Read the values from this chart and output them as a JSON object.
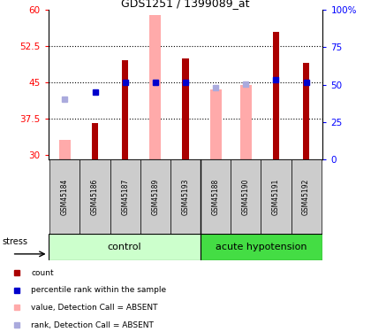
{
  "title": "GDS1251 / 1399089_at",
  "samples": [
    "GSM45184",
    "GSM45186",
    "GSM45187",
    "GSM45189",
    "GSM45193",
    "GSM45188",
    "GSM45190",
    "GSM45191",
    "GSM45192"
  ],
  "red_bar_values": [
    null,
    36.5,
    49.5,
    null,
    50.0,
    null,
    null,
    55.5,
    49.0
  ],
  "pink_bar_values": [
    33.0,
    null,
    null,
    59.0,
    null,
    43.5,
    44.5,
    null,
    null
  ],
  "blue_square_values": [
    null,
    43.0,
    45.0,
    45.0,
    45.0,
    null,
    null,
    45.5,
    45.0
  ],
  "light_blue_square_values": [
    41.5,
    null,
    null,
    45.0,
    null,
    43.8,
    44.7,
    null,
    null
  ],
  "ylim_left": [
    29,
    60
  ],
  "ylim_right": [
    0,
    100
  ],
  "yticks_left": [
    30,
    37.5,
    45,
    52.5,
    60
  ],
  "yticks_right": [
    0,
    25,
    50,
    75,
    100
  ],
  "red_color": "#AA0000",
  "pink_color": "#FFAAAA",
  "blue_color": "#0000CC",
  "light_blue_color": "#AAAADD",
  "control_light_color": "#CCFFCC",
  "control_dark_color": "#44DD44",
  "group_bg_color": "#CCCCCC",
  "legend_items": [
    {
      "color": "#AA0000",
      "label": "count",
      "marker": "s"
    },
    {
      "color": "#0000CC",
      "label": "percentile rank within the sample",
      "marker": "s"
    },
    {
      "color": "#FFAAAA",
      "label": "value, Detection Call = ABSENT",
      "marker": "s"
    },
    {
      "color": "#AAAADD",
      "label": "rank, Detection Call = ABSENT",
      "marker": "s"
    }
  ]
}
